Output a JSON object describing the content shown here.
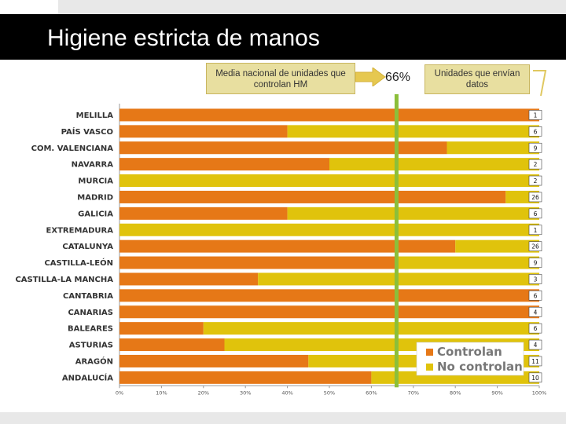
{
  "header": {
    "title": "Higiene estricta de manos"
  },
  "callouts": {
    "mean_label": "Media nacional de unidades que controlan HM",
    "mean_value_label": "66%",
    "units_label": "Unidades que envían datos"
  },
  "colors": {
    "controlan": "#e67817",
    "no_controlan": "#e0c30c",
    "mean_line": "#8cbf3a"
  },
  "chart_data": {
    "type": "bar",
    "orientation": "horizontal",
    "stacked": true,
    "title": "Higiene estricta de manos",
    "categories": [
      "MELILLA",
      "PAÍS VASCO",
      "COM. VALENCIANA",
      "NAVARRA",
      "MURCIA",
      "MADRID",
      "GALICIA",
      "EXTREMADURA",
      "CATALUNYA",
      "CASTILLA-LEÓN",
      "CASTILLA-LA MANCHA",
      "CANTABRIA",
      "CANARIAS",
      "BALEARES",
      "ASTURIAS",
      "ARAGÓN",
      "ANDALUCÍA"
    ],
    "series": [
      {
        "name": "Controlan",
        "values": [
          100,
          40,
          78,
          50,
          0,
          92,
          40,
          0,
          80,
          66,
          33,
          100,
          100,
          20,
          25,
          45,
          60
        ]
      },
      {
        "name": "No controlan",
        "values": [
          0,
          60,
          22,
          50,
          100,
          8,
          60,
          100,
          20,
          34,
          67,
          0,
          0,
          80,
          75,
          55,
          40
        ]
      }
    ],
    "units": [
      "1",
      "6",
      "9",
      "2",
      "2",
      "26",
      "6",
      "1",
      "26",
      "9",
      "3",
      "6",
      "4",
      "6",
      "4",
      "11",
      "10"
    ],
    "mean": 66,
    "xticks": [
      "0%",
      "10%",
      "20%",
      "30%",
      "40%",
      "50%",
      "60%",
      "70%",
      "80%",
      "90%",
      "100%"
    ],
    "xlim": [
      0,
      100
    ],
    "legend": [
      "Controlan",
      "No controlan"
    ],
    "legend_position": "bottom-right"
  }
}
